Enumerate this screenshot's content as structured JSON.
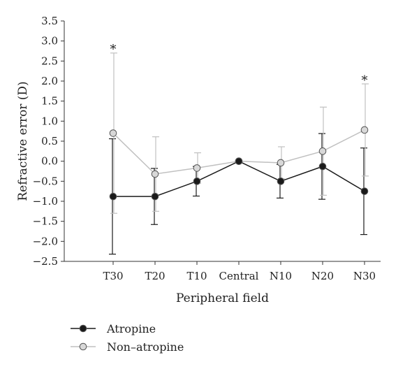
{
  "chart_data": {
    "type": "line",
    "xlabel": "Peripheral field",
    "ylabel": "Refractive error (D)",
    "categories": [
      "T30",
      "T20",
      "T10",
      "Central",
      "N10",
      "N20",
      "N30"
    ],
    "ylim": [
      -2.5,
      3.5
    ],
    "yticks": [
      3.5,
      3.0,
      2.5,
      2.0,
      1.5,
      1.0,
      0.5,
      0.0,
      -0.5,
      -1.0,
      -1.5,
      -2.0,
      -2.5
    ],
    "ytick_labels": [
      "3.5",
      "3.0",
      "2.5",
      "2.0",
      "1.5",
      "1.0",
      "0.5",
      "0.0",
      "−0.5",
      "−1.0",
      "−1.5",
      "−2.0",
      "−2.5"
    ],
    "grid": false,
    "legend_position": "bottom-left",
    "series": [
      {
        "name": "Atropine",
        "color": "#1a1a1a",
        "marker_fill": "#1a1a1a",
        "values": [
          -0.88,
          -0.88,
          -0.5,
          0.0,
          -0.5,
          -0.13,
          -0.75
        ],
        "error_lower": [
          1.44,
          0.7,
          0.37,
          0.0,
          0.42,
          0.82,
          1.08
        ],
        "error_upper": [
          1.44,
          0.7,
          0.37,
          0.0,
          0.42,
          0.82,
          1.08
        ]
      },
      {
        "name": "Non–atropine",
        "color": "#c0c0c0",
        "marker_fill": "#d8d8d8",
        "values": [
          0.7,
          -0.32,
          -0.17,
          0.0,
          -0.04,
          0.25,
          0.78
        ],
        "error_lower": [
          2.0,
          0.93,
          0.38,
          0.0,
          0.4,
          1.1,
          1.15
        ],
        "error_upper": [
          2.0,
          0.93,
          0.38,
          0.0,
          0.4,
          1.1,
          1.15
        ]
      }
    ],
    "annotations": [
      {
        "category": "T30",
        "text": "*",
        "y": 2.9
      },
      {
        "category": "N30",
        "text": "*",
        "y": 2.12
      }
    ]
  }
}
